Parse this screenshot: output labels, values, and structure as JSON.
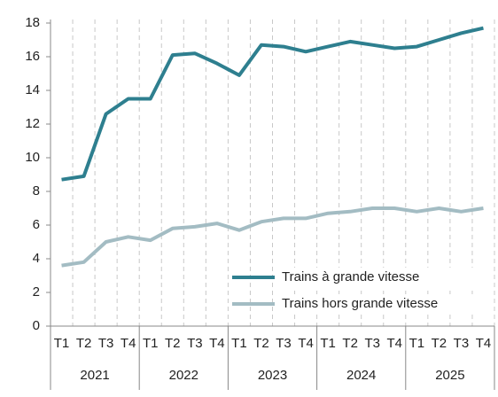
{
  "chart_data": {
    "type": "line",
    "categories": [
      "T1",
      "T2",
      "T3",
      "T4",
      "T1",
      "T2",
      "T3",
      "T4",
      "T1",
      "T2",
      "T3",
      "T4",
      "T1",
      "T2",
      "T3",
      "T4",
      "T1",
      "T2",
      "T3",
      "T4"
    ],
    "groups": [
      "2021",
      "2022",
      "2023",
      "2024",
      "2025"
    ],
    "series": [
      {
        "name": "Trains à grande vitesse",
        "color": "#2e7f8f",
        "values": [
          8.7,
          8.9,
          12.6,
          13.5,
          13.5,
          16.1,
          16.2,
          15.6,
          14.9,
          16.7,
          16.6,
          16.3,
          16.6,
          16.9,
          16.7,
          16.5,
          16.6,
          17.0,
          17.4,
          17.7
        ]
      },
      {
        "name": "Trains hors grande vitesse",
        "color": "#a3bcc3",
        "values": [
          3.6,
          3.8,
          5.0,
          5.3,
          5.1,
          5.8,
          5.9,
          6.1,
          5.7,
          6.2,
          6.4,
          6.4,
          6.7,
          6.8,
          7.0,
          7.0,
          6.8,
          7.0,
          6.8,
          7.0
        ]
      }
    ],
    "ylim": [
      0,
      18
    ],
    "yticks": [
      0,
      2,
      4,
      6,
      8,
      10,
      12,
      14,
      16,
      18
    ],
    "grid": true,
    "legend": "lower right"
  }
}
